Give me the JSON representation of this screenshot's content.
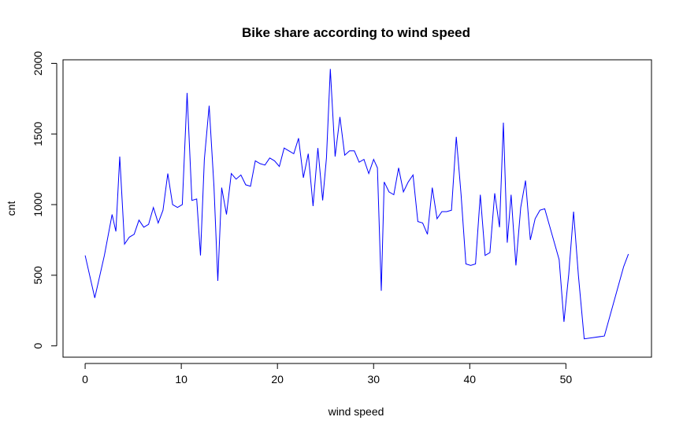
{
  "chart_data": {
    "type": "line",
    "title": "Bike share according to wind speed",
    "xlabel": "wind speed",
    "ylabel": "cnt",
    "xlim": [
      -2.3,
      58.9
    ],
    "ylim": [
      -80,
      2025
    ],
    "x_ticks": [
      0,
      10,
      20,
      30,
      40,
      50
    ],
    "y_ticks": [
      0,
      500,
      1000,
      1500,
      2000
    ],
    "grid": false,
    "legend": "none",
    "line_color": "#0000ff",
    "series": [
      {
        "x": [
          0,
          1,
          2,
          2.8,
          3.2,
          3.6,
          4.1,
          4.6,
          5.1,
          5.6,
          6.1,
          6.6,
          7.1,
          7.6,
          8.1,
          8.6,
          9.1,
          9.6,
          10.1,
          10.6,
          11.1,
          11.6,
          12.0,
          12.4,
          12.9,
          13.4,
          13.8,
          14.2,
          14.7,
          15.2,
          15.7,
          16.2,
          16.7,
          17.2,
          17.7,
          18.2,
          18.7,
          19.2,
          19.7,
          20.2,
          20.7,
          21.2,
          21.7,
          22.2,
          22.7,
          23.2,
          23.7,
          24.2,
          24.7,
          25.1,
          25.5,
          26.0,
          26.5,
          27.0,
          27.5,
          28.0,
          28.5,
          29.0,
          29.5,
          30.0,
          30.4,
          30.8,
          31.1,
          31.6,
          32.1,
          32.6,
          33.1,
          33.6,
          34.1,
          34.6,
          35.1,
          35.6,
          36.1,
          36.6,
          37.1,
          37.6,
          38.1,
          38.6,
          39.1,
          39.6,
          40.1,
          40.6,
          41.1,
          41.6,
          42.1,
          42.6,
          43.1,
          43.5,
          43.9,
          44.3,
          44.8,
          45.3,
          45.8,
          46.3,
          46.8,
          47.3,
          47.8,
          48.3,
          48.8,
          49.3,
          49.8,
          50.3,
          50.8,
          51.3,
          51.9,
          54.0,
          56.0,
          56.5
        ],
        "y": [
          640,
          340,
          640,
          930,
          810,
          1340,
          720,
          770,
          790,
          890,
          840,
          860,
          980,
          870,
          960,
          1220,
          1000,
          980,
          1000,
          1790,
          1030,
          1040,
          640,
          1320,
          1700,
          1130,
          460,
          1120,
          930,
          1220,
          1180,
          1210,
          1140,
          1130,
          1310,
          1290,
          1280,
          1330,
          1310,
          1270,
          1400,
          1380,
          1360,
          1470,
          1190,
          1360,
          990,
          1400,
          1030,
          1330,
          1960,
          1340,
          1620,
          1350,
          1380,
          1380,
          1300,
          1320,
          1220,
          1320,
          1260,
          390,
          1160,
          1090,
          1070,
          1260,
          1090,
          1160,
          1210,
          880,
          870,
          790,
          1120,
          900,
          950,
          950,
          960,
          1480,
          1070,
          580,
          570,
          580,
          1070,
          640,
          660,
          1080,
          840,
          1580,
          730,
          1070,
          570,
          980,
          1170,
          750,
          900,
          960,
          970,
          850,
          730,
          610,
          170,
          510,
          950,
          500,
          50,
          70,
          560,
          650
        ]
      }
    ]
  }
}
